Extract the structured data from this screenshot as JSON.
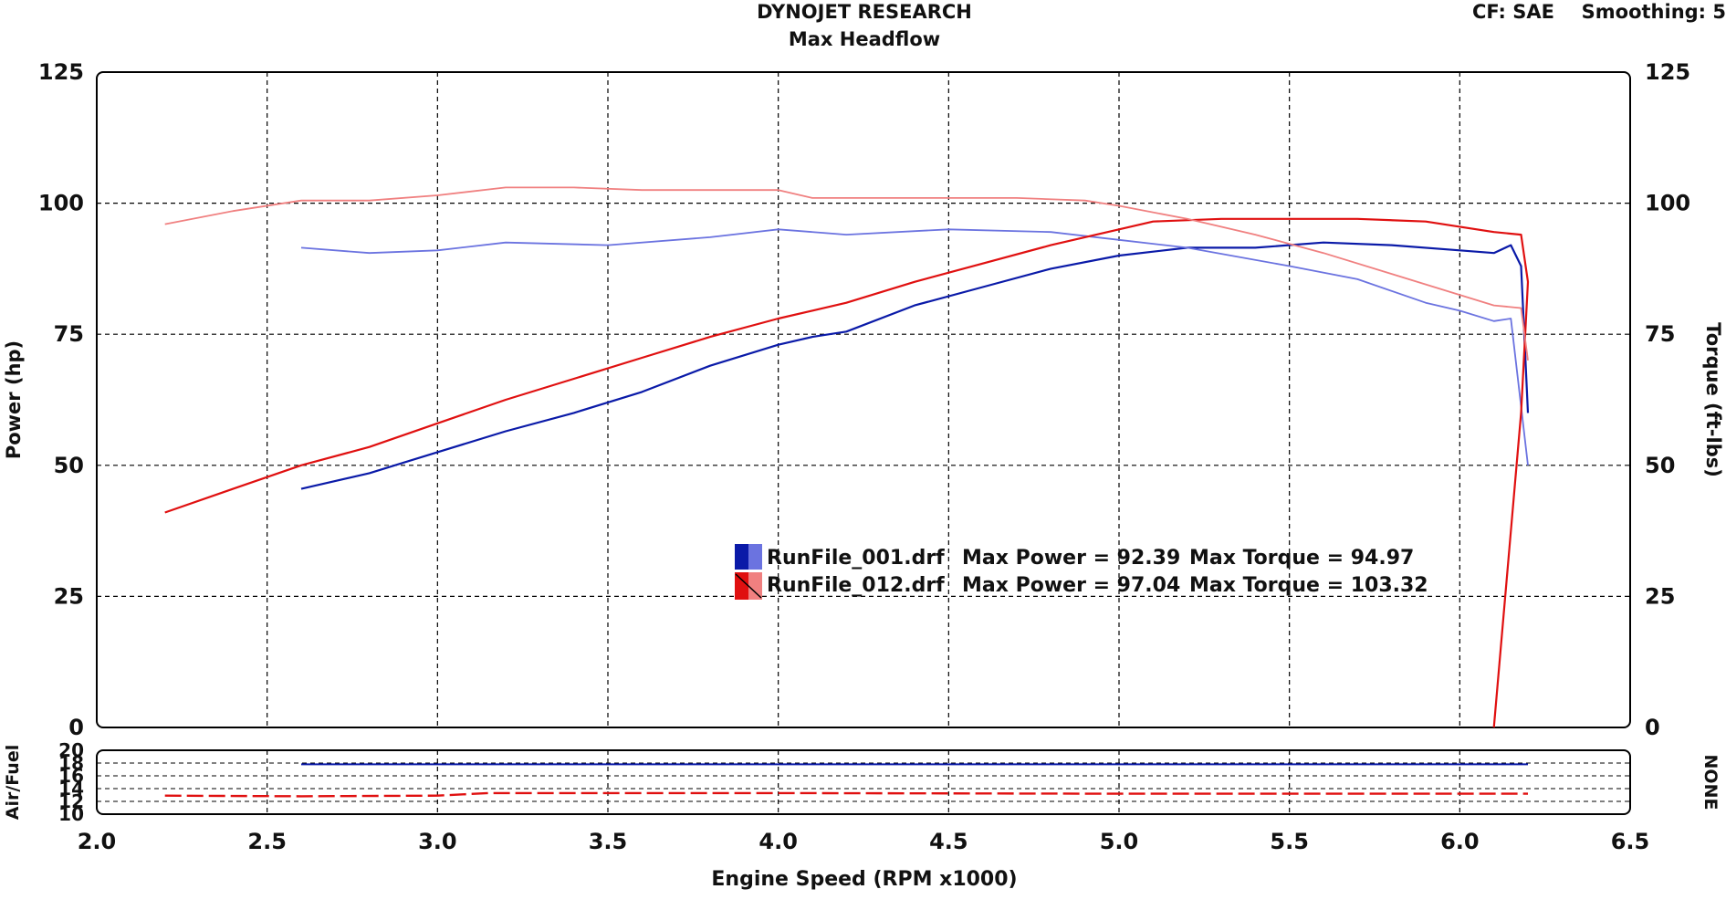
{
  "header": {
    "title": "DYNOJET RESEARCH",
    "subtitle": "Max Headflow",
    "cf": "CF: SAE",
    "smoothing": "Smoothing: 5"
  },
  "colors": {
    "run1_power": "#0a1aa8",
    "run1_torque": "#6b73e0",
    "run2_power": "#e01010",
    "run2_torque": "#f08080",
    "grid": "#000000"
  },
  "chart_data": [
    {
      "type": "line",
      "title": "DYNOJET RESEARCH",
      "subtitle": "Max Headflow",
      "xlabel": "Engine Speed (RPM x1000)",
      "ylabel": "Power (hp)",
      "y2label": "Torque (ft-lbs)",
      "xlim": [
        2.0,
        6.5
      ],
      "ylim": [
        0,
        125
      ],
      "y2lim": [
        0,
        125
      ],
      "xticks": [
        "2.0",
        "2.5",
        "3.0",
        "3.5",
        "4.0",
        "4.5",
        "5.0",
        "5.5",
        "6.0",
        "6.5"
      ],
      "yticks": [
        "0",
        "25",
        "50",
        "75",
        "100",
        "125"
      ],
      "y2ticks": [
        "0",
        "25",
        "50",
        "75",
        "100",
        "125"
      ],
      "grid": true,
      "legend": [
        {
          "file": "RunFile_001.drf",
          "power_label": "Max Power = 92.39",
          "torque_label": "Max Torque = 94.97"
        },
        {
          "file": "RunFile_012.drf",
          "power_label": "Max Power = 97.04",
          "torque_label": "Max Torque = 103.32"
        }
      ],
      "series": [
        {
          "name": "RunFile_001.drf",
          "measure": "power",
          "axis": "left",
          "x": [
            2.6,
            2.8,
            3.0,
            3.2,
            3.4,
            3.6,
            3.8,
            4.0,
            4.1,
            4.2,
            4.4,
            4.6,
            4.8,
            5.0,
            5.2,
            5.4,
            5.6,
            5.8,
            6.0,
            6.1,
            6.15,
            6.18,
            6.2
          ],
          "y": [
            45.5,
            48.5,
            52.5,
            56.5,
            60,
            64,
            69,
            73,
            74.5,
            75.5,
            80.5,
            84,
            87.5,
            90,
            91.5,
            91.5,
            92.5,
            92,
            91,
            90.5,
            92,
            88,
            60
          ]
        },
        {
          "name": "RunFile_001.drf",
          "measure": "torque",
          "axis": "right",
          "x": [
            2.6,
            2.8,
            3.0,
            3.2,
            3.5,
            3.8,
            4.0,
            4.2,
            4.5,
            4.8,
            5.0,
            5.2,
            5.5,
            5.7,
            5.9,
            6.0,
            6.1,
            6.15,
            6.2
          ],
          "y": [
            91.5,
            90.5,
            91,
            92.5,
            92,
            93.5,
            95,
            94,
            95,
            94.5,
            93,
            91.5,
            88,
            85.5,
            81,
            79.5,
            77.5,
            78,
            50
          ]
        },
        {
          "name": "RunFile_012.drf",
          "measure": "power",
          "axis": "left",
          "x": [
            2.2,
            2.4,
            2.6,
            2.8,
            3.0,
            3.2,
            3.4,
            3.6,
            3.8,
            4.0,
            4.2,
            4.4,
            4.6,
            4.8,
            5.0,
            5.1,
            5.3,
            5.5,
            5.7,
            5.9,
            6.1,
            6.18,
            6.2,
            6.18,
            6.1
          ],
          "y": [
            41,
            45.5,
            50,
            53.5,
            58,
            62.5,
            66.5,
            70.5,
            74.5,
            78,
            81,
            85,
            88.5,
            92,
            95,
            96.5,
            97,
            97,
            97,
            96.5,
            94.5,
            94,
            85,
            60,
            0
          ]
        },
        {
          "name": "RunFile_012.drf",
          "measure": "torque",
          "axis": "right",
          "x": [
            2.2,
            2.4,
            2.6,
            2.8,
            3.0,
            3.2,
            3.4,
            3.6,
            3.8,
            4.0,
            4.1,
            4.3,
            4.5,
            4.7,
            4.9,
            5.0,
            5.2,
            5.4,
            5.6,
            5.8,
            6.0,
            6.1,
            6.18,
            6.2
          ],
          "y": [
            96,
            98.5,
            100.5,
            100.5,
            101.5,
            103,
            103,
            102.5,
            102.5,
            102.5,
            101,
            101,
            101,
            101,
            100.5,
            99.5,
            97,
            94,
            90.5,
            86.5,
            82.5,
            80.5,
            80,
            70
          ]
        }
      ]
    },
    {
      "type": "line",
      "title": "",
      "ylabel": "Air/Fuel",
      "y2label": "NONE",
      "xlim": [
        2.0,
        6.5
      ],
      "ylim": [
        10,
        20
      ],
      "yticks": [
        "10",
        "12",
        "14",
        "16",
        "18",
        "20"
      ],
      "grid": true,
      "series": [
        {
          "name": "RunFile_001.drf",
          "x": [
            2.6,
            6.2
          ],
          "y": [
            17.8,
            17.8
          ]
        },
        {
          "name": "RunFile_012.drf",
          "x": [
            2.2,
            2.6,
            3.0,
            3.15,
            4.0,
            5.0,
            6.0,
            6.2
          ],
          "y": [
            12.9,
            12.8,
            12.9,
            13.3,
            13.3,
            13.2,
            13.2,
            13.2
          ]
        }
      ]
    }
  ]
}
